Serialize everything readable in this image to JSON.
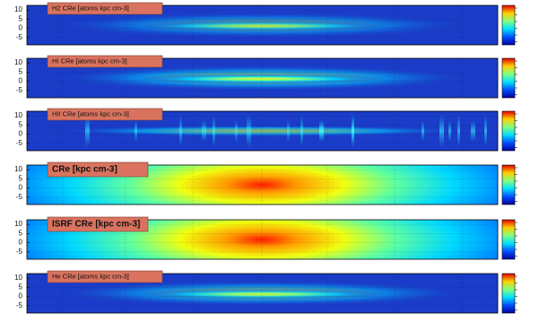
{
  "chart_data": [
    {
      "type": "heatmap",
      "title": "H2 CRe [atoms kpc cm-3]",
      "ylim": [
        -9,
        12.5
      ],
      "yticks": [
        10,
        5,
        0,
        -5
      ],
      "grid": true
    },
    {
      "type": "heatmap",
      "title": "HI CRe [atoms kpc cm-3]",
      "ylim": [
        -9,
        12.5
      ],
      "yticks": [
        10,
        5,
        0,
        -5
      ],
      "grid": true
    },
    {
      "type": "heatmap",
      "title": "HII CRe [atoms kpc cm-3]",
      "ylim": [
        -9,
        12.5
      ],
      "yticks": [
        10,
        5,
        0,
        -5
      ],
      "grid": true
    },
    {
      "type": "heatmap",
      "title": "CRe [kpc cm-3]",
      "ylim": [
        -9,
        12.5
      ],
      "yticks": [
        10,
        5,
        0,
        -5
      ],
      "grid": true
    },
    {
      "type": "heatmap",
      "title": "ISRF CRe [kpc cm-3]",
      "ylim": [
        -9,
        12.5
      ],
      "yticks": [
        10,
        5,
        0,
        -5
      ],
      "grid": true
    },
    {
      "type": "heatmap",
      "title": "He CRe [atoms kpc cm-3]",
      "ylim": [
        -9,
        12.5
      ],
      "yticks": [
        10,
        5,
        0,
        -5
      ],
      "grid": true
    }
  ]
}
